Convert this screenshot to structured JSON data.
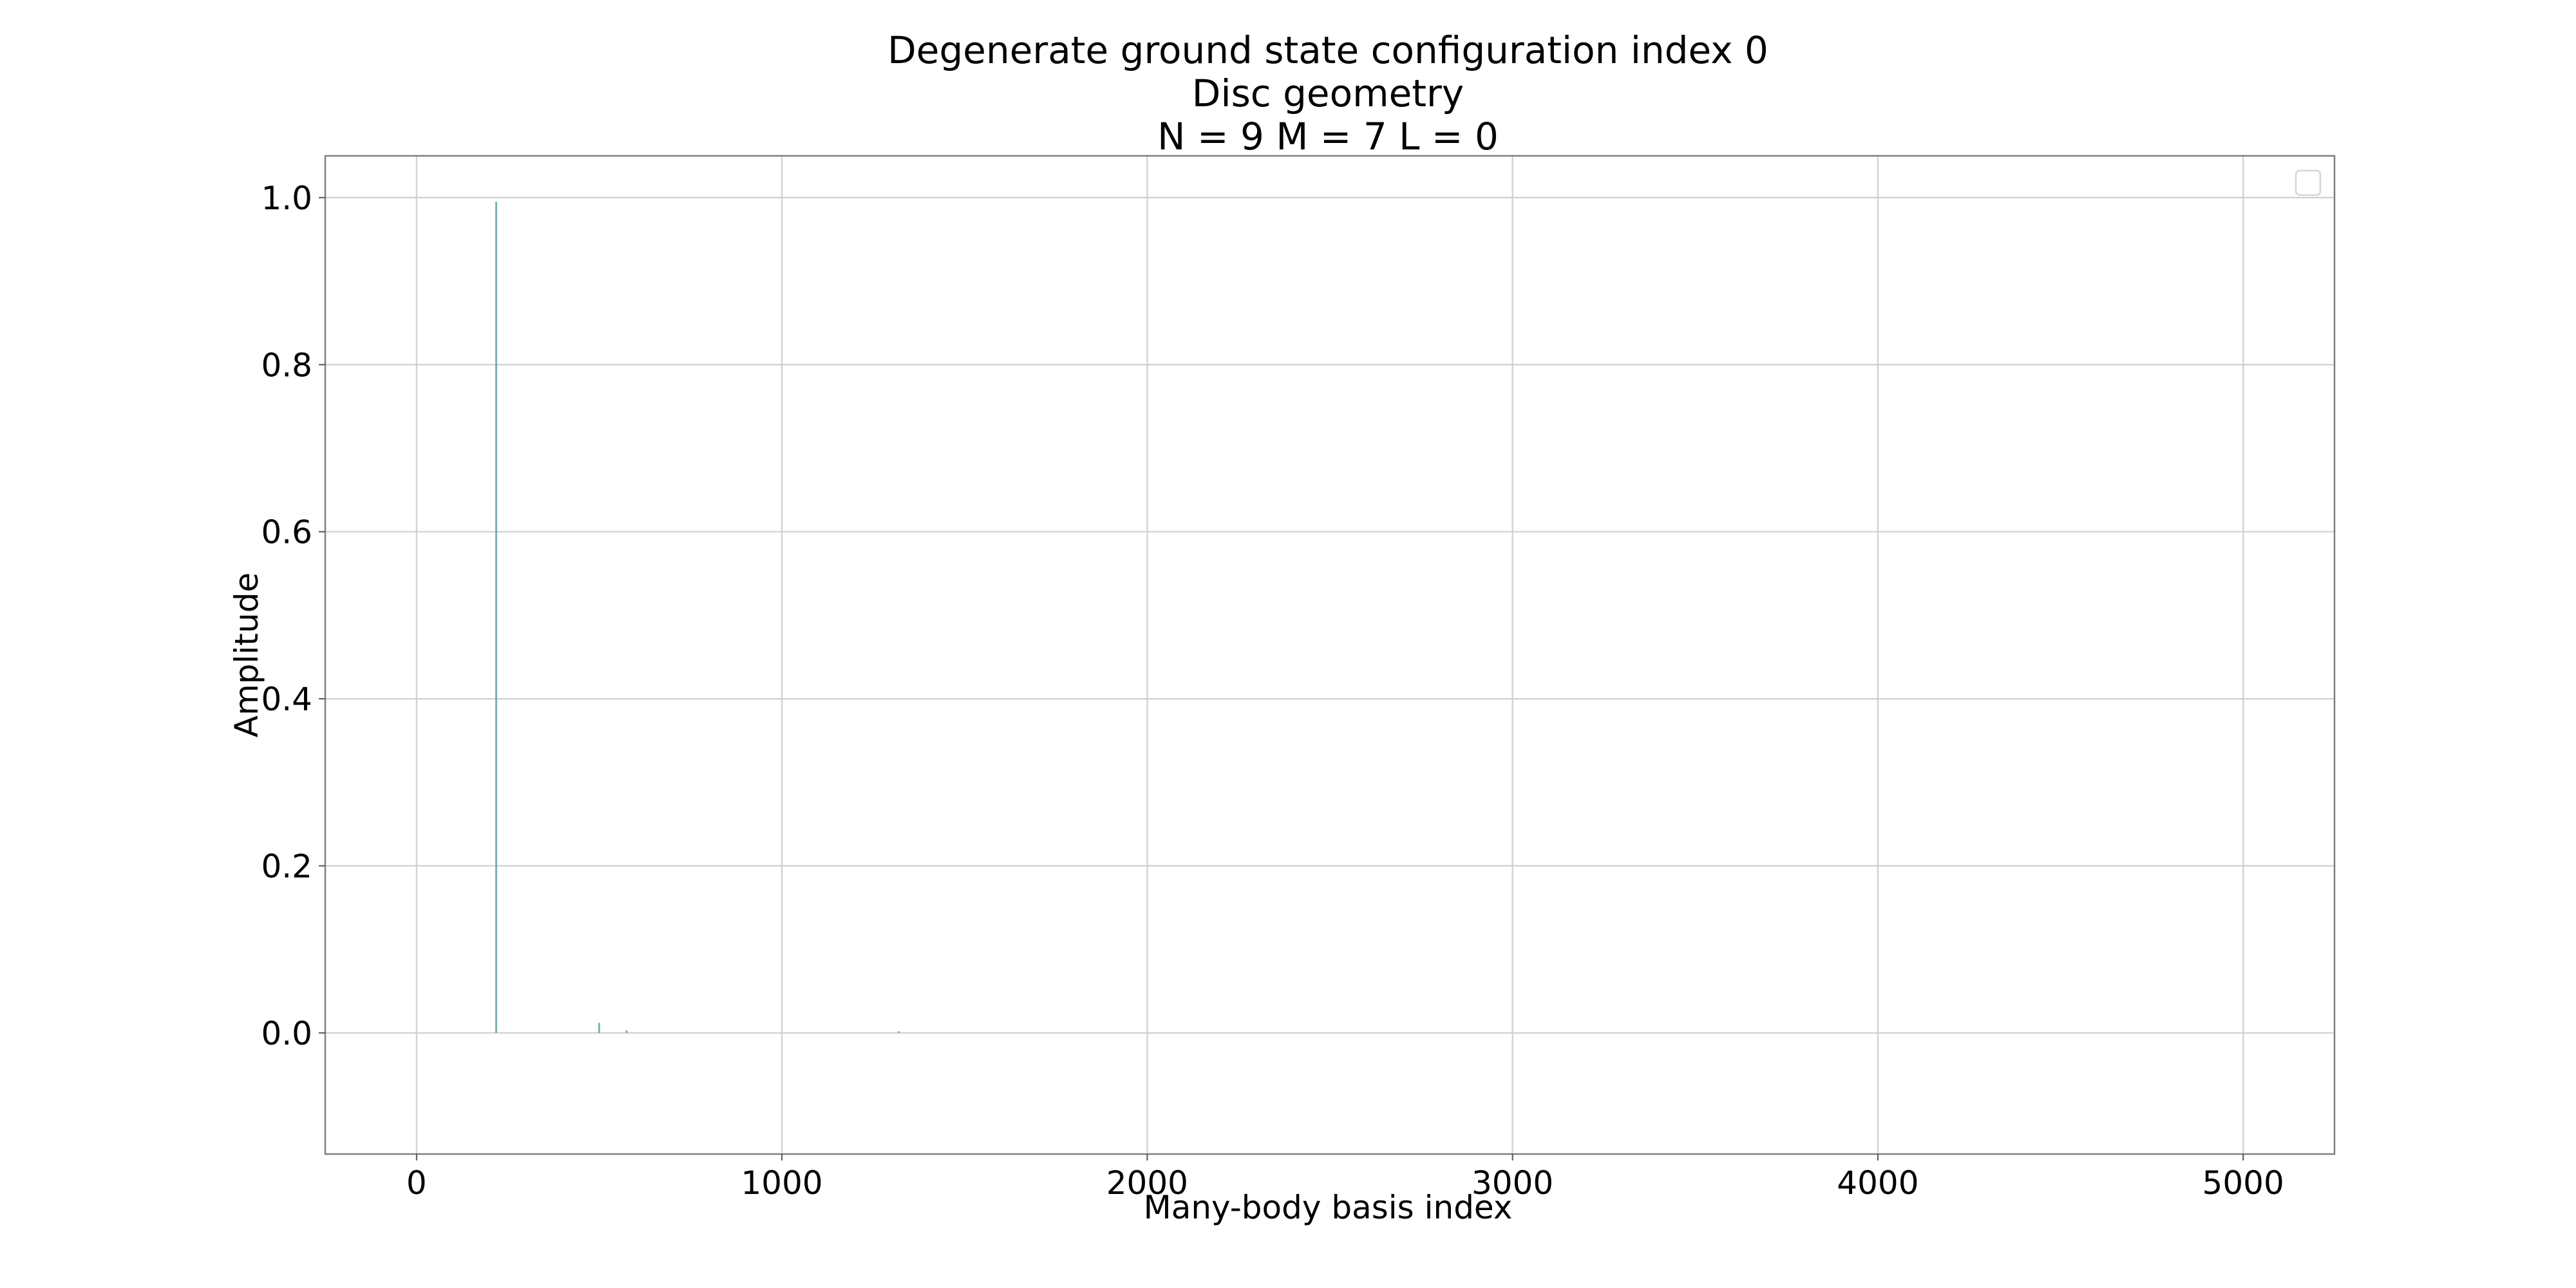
{
  "chart_data": {
    "type": "bar",
    "title_lines": [
      "Degenerate ground state configuration index 0",
      "Disc geometry",
      "N = 9   M = 7   L = 0"
    ],
    "xlabel": "Many-body basis index",
    "ylabel": "Amplitude",
    "xlim": [
      -250,
      5250
    ],
    "ylim": [
      -0.145,
      1.05
    ],
    "xticks": [
      0,
      1000,
      2000,
      3000,
      4000,
      5000
    ],
    "xtick_labels": [
      "0",
      "1000",
      "2000",
      "3000",
      "4000",
      "5000"
    ],
    "yticks": [
      0.0,
      0.2,
      0.4,
      0.6,
      0.8,
      1.0
    ],
    "ytick_labels": [
      "0.0",
      "0.2",
      "0.4",
      "0.6",
      "0.8",
      "1.0"
    ],
    "grid": true,
    "legend": "top-right",
    "series": [
      {
        "x": [
          218,
          500,
          575,
          1320
        ],
        "values": [
          0.995,
          0.012,
          0.003,
          0.002
        ],
        "color": "#5f9ea0"
      }
    ]
  }
}
